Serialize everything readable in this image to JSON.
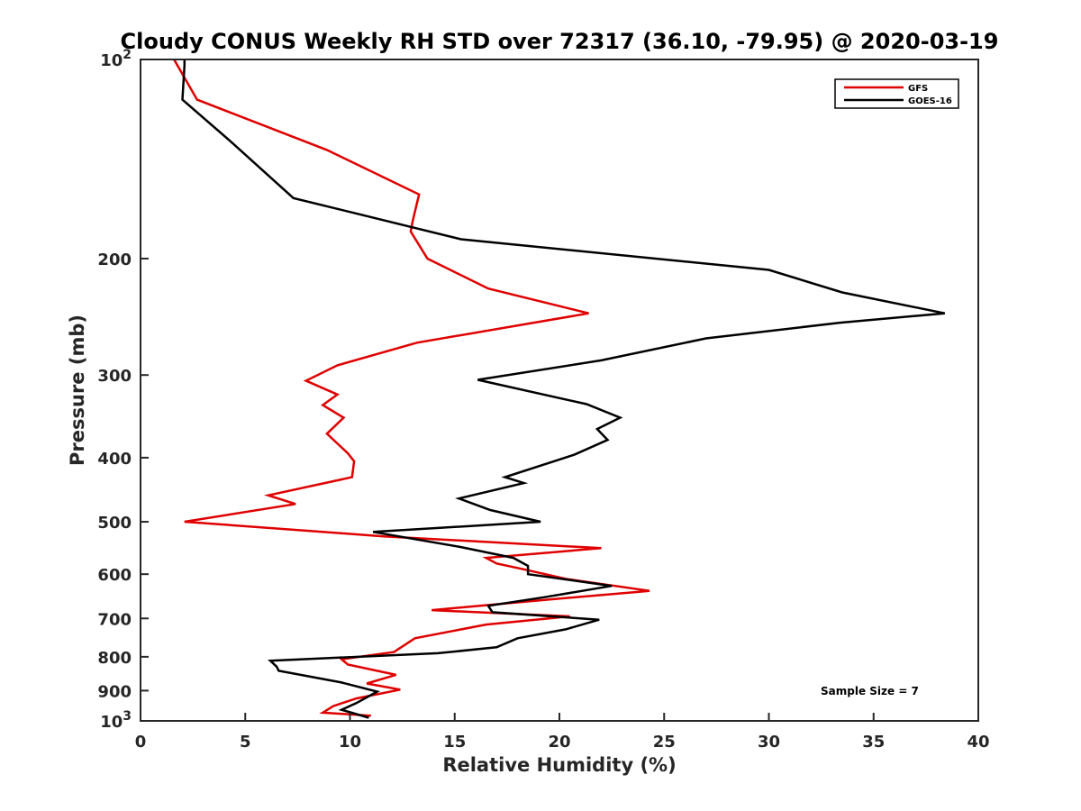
{
  "chart_data": {
    "type": "line",
    "title": "Cloudy CONUS Weekly RH STD over 72317 (36.10, -79.95) @ 2020-03-19",
    "xlabel": "Relative Humidity (%)",
    "ylabel": "Pressure (mb)",
    "xlim": [
      0,
      40
    ],
    "ylim": [
      100,
      1000
    ],
    "yscale": "log",
    "y_reversed": true,
    "x_ticks": [
      "0",
      "5",
      "10",
      "15",
      "20",
      "25",
      "30",
      "35",
      "40"
    ],
    "y_ticks": [
      {
        "value": 100,
        "label": "10",
        "sup": "2"
      },
      {
        "value": 200,
        "label": "200",
        "sup": ""
      },
      {
        "value": 300,
        "label": "300",
        "sup": ""
      },
      {
        "value": 400,
        "label": "400",
        "sup": ""
      },
      {
        "value": 500,
        "label": "500",
        "sup": ""
      },
      {
        "value": 600,
        "label": "600",
        "sup": ""
      },
      {
        "value": 700,
        "label": "700",
        "sup": ""
      },
      {
        "value": 800,
        "label": "800",
        "sup": ""
      },
      {
        "value": 900,
        "label": "900",
        "sup": ""
      },
      {
        "value": 1000,
        "label": "10",
        "sup": "3"
      }
    ],
    "legend_position": "top-right",
    "grid": false,
    "series": [
      {
        "name": "GFS",
        "color": "#e00000",
        "points": [
          [
            1.6,
            100
          ],
          [
            2.7,
            115
          ],
          [
            8.9,
            137
          ],
          [
            13.3,
            160
          ],
          [
            13.0,
            175
          ],
          [
            12.9,
            182
          ],
          [
            13.7,
            200
          ],
          [
            16.6,
            222
          ],
          [
            21.4,
            242
          ],
          [
            13.2,
            268
          ],
          [
            9.4,
            290
          ],
          [
            7.9,
            306
          ],
          [
            9.4,
            321
          ],
          [
            8.7,
            333
          ],
          [
            9.7,
            348
          ],
          [
            8.9,
            368
          ],
          [
            9.9,
            394
          ],
          [
            10.2,
            405
          ],
          [
            10.1,
            428
          ],
          [
            6.1,
            456
          ],
          [
            7.4,
            470
          ],
          [
            2.1,
            500
          ],
          [
            11.6,
            526
          ],
          [
            22.0,
            548
          ],
          [
            16.5,
            567
          ],
          [
            17.0,
            578
          ],
          [
            18.3,
            590
          ],
          [
            20.3,
            610
          ],
          [
            24.3,
            636
          ],
          [
            19.6,
            655
          ],
          [
            13.9,
            680
          ],
          [
            20.5,
            695
          ],
          [
            16.5,
            715
          ],
          [
            13.1,
            750
          ],
          [
            12.1,
            787
          ],
          [
            9.6,
            807
          ],
          [
            9.9,
            822
          ],
          [
            12.2,
            852
          ],
          [
            10.8,
            878
          ],
          [
            12.4,
            897
          ],
          [
            10.3,
            925
          ],
          [
            9.2,
            950
          ],
          [
            8.7,
            972
          ],
          [
            11.0,
            982
          ]
        ]
      },
      {
        "name": "GOES-16",
        "color": "#000000",
        "points": [
          [
            2.1,
            100
          ],
          [
            2.1,
            102
          ],
          [
            2.0,
            115
          ],
          [
            4.3,
            133
          ],
          [
            7.3,
            162
          ],
          [
            15.3,
            187
          ],
          [
            30.0,
            208
          ],
          [
            33.5,
            225
          ],
          [
            38.4,
            242
          ],
          [
            33.4,
            250
          ],
          [
            27.0,
            264
          ],
          [
            22.0,
            285
          ],
          [
            16.1,
            305
          ],
          [
            21.3,
            332
          ],
          [
            22.9,
            348
          ],
          [
            21.8,
            362
          ],
          [
            22.3,
            376
          ],
          [
            20.7,
            396
          ],
          [
            17.4,
            428
          ],
          [
            18.3,
            437
          ],
          [
            15.2,
            461
          ],
          [
            16.7,
            480
          ],
          [
            19.1,
            500
          ],
          [
            11.1,
            518
          ],
          [
            15.3,
            546
          ],
          [
            17.8,
            567
          ],
          [
            18.5,
            583
          ],
          [
            18.5,
            600
          ],
          [
            22.5,
            625
          ],
          [
            19.3,
            650
          ],
          [
            16.6,
            670
          ],
          [
            16.8,
            685
          ],
          [
            21.9,
            703
          ],
          [
            20.3,
            727
          ],
          [
            18.0,
            750
          ],
          [
            17.0,
            774
          ],
          [
            14.2,
            790
          ],
          [
            6.2,
            811
          ],
          [
            6.5,
            828
          ],
          [
            6.6,
            840
          ],
          [
            9.6,
            875
          ],
          [
            11.3,
            903
          ],
          [
            10.3,
            940
          ],
          [
            9.6,
            962
          ],
          [
            10.9,
            989
          ]
        ]
      }
    ],
    "annotations": [
      "Sample Size = 7"
    ]
  }
}
